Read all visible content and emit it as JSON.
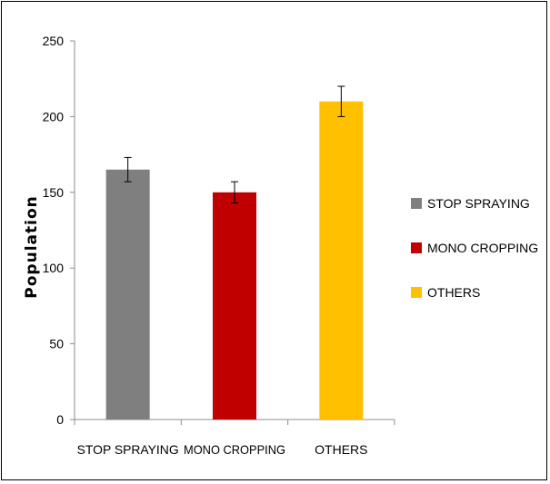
{
  "chart_data": {
    "type": "bar",
    "ylabel": "Population",
    "xlabel": "",
    "ylim": [
      0,
      250
    ],
    "yticks": [
      "0",
      "50",
      "100",
      "150",
      "200",
      "250"
    ],
    "categories": [
      "STOP SPRAYING",
      "MONO CROPPING",
      "OTHERS"
    ],
    "values": [
      165,
      150,
      210
    ],
    "error_low": [
      157,
      143,
      200
    ],
    "error_high": [
      173,
      157,
      220
    ],
    "colors": [
      "#7f7f7f",
      "#c00000",
      "#ffc000"
    ],
    "legend": {
      "position": "right",
      "entries": [
        "STOP SPRAYING",
        "MONO CROPPING",
        "OTHERS"
      ]
    },
    "grid": false
  }
}
